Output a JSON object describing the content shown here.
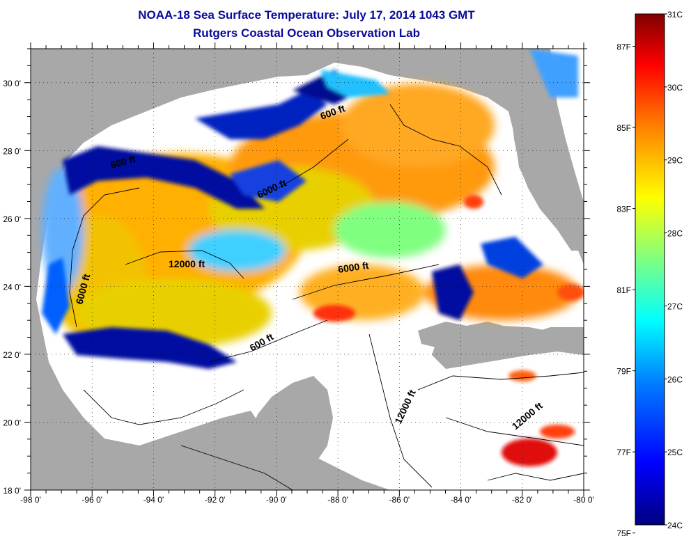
{
  "title": {
    "line1": "NOAA-18 Sea Surface Temperature:  July 17, 2014 1043 GMT",
    "line2": "Rutgers Coastal Ocean Observation Lab"
  },
  "axes": {
    "lon_labels": [
      "-98 0'",
      "-96 0'",
      "-94 0'",
      "-92 0'",
      "-90 0'",
      "-88 0'",
      "-86 0'",
      "-84 0'",
      "-82 0'",
      "-80 0'"
    ],
    "lat_labels": [
      "30 0'",
      "28 0'",
      "26 0'",
      "24 0'",
      "22 0'",
      "20 0'",
      "18 0'"
    ]
  },
  "contour_labels": [
    {
      "text": "6000 ft"
    },
    {
      "text": "12000 ft"
    },
    {
      "text": "6000 ft"
    },
    {
      "text": "600 ft"
    },
    {
      "text": "12000 ft"
    },
    {
      "text": "12000 ft"
    },
    {
      "text": "6000 ft"
    },
    {
      "text": "600 ft"
    },
    {
      "text": "600 ft"
    }
  ],
  "colorbar": {
    "fahrenheit_labels": [
      "87F",
      "85F",
      "83F",
      "81F",
      "79F",
      "77F",
      "75F"
    ],
    "celsius_labels": [
      "31C",
      "30C",
      "29C",
      "28C",
      "27C",
      "26C",
      "25C",
      "24C"
    ],
    "colors": [
      "#00007f",
      "#0000ff",
      "#0080ff",
      "#00ffff",
      "#80ff80",
      "#ffff00",
      "#ff8000",
      "#ff0000",
      "#7f0000"
    ]
  },
  "palette": {
    "land": "#a8a8a8",
    "cloud": "#ffffff",
    "title": "#0a0a9a"
  }
}
